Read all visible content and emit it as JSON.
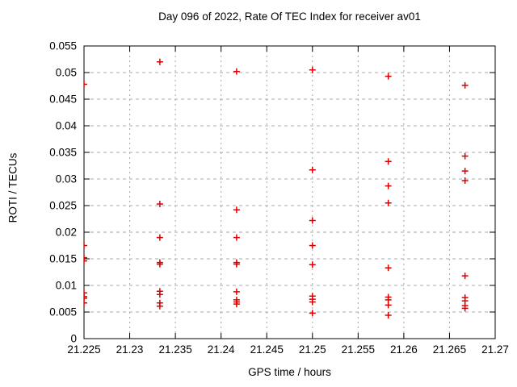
{
  "page": {
    "background": "#ffffff"
  },
  "chart_data": {
    "type": "scatter",
    "title": "Day 096 of 2022, Rate Of TEC Index for receiver av01",
    "xlabel": "GPS time / hours",
    "ylabel": "ROTI / TECUs",
    "xlim": [
      21.225,
      21.27
    ],
    "ylim": [
      0,
      0.055
    ],
    "grid": true,
    "legend": "none",
    "marker": {
      "shape": "plus",
      "color": "#dd0000",
      "size": 8
    },
    "axis_color": "#000000",
    "grid_color": "#a8a8a8",
    "x_ticks": [
      {
        "value": 21.225,
        "label": "21.225"
      },
      {
        "value": 21.23,
        "label": "21.23"
      },
      {
        "value": 21.235,
        "label": "21.235"
      },
      {
        "value": 21.24,
        "label": "21.24"
      },
      {
        "value": 21.245,
        "label": "21.245"
      },
      {
        "value": 21.25,
        "label": "21.25"
      },
      {
        "value": 21.255,
        "label": "21.255"
      },
      {
        "value": 21.26,
        "label": "21.26"
      },
      {
        "value": 21.265,
        "label": "21.265"
      },
      {
        "value": 21.27,
        "label": "21.27"
      }
    ],
    "y_ticks": [
      {
        "value": 0,
        "label": "0"
      },
      {
        "value": 0.005,
        "label": "0.005"
      },
      {
        "value": 0.01,
        "label": "0.01"
      },
      {
        "value": 0.015,
        "label": "0.015"
      },
      {
        "value": 0.02,
        "label": "0.02"
      },
      {
        "value": 0.025,
        "label": "0.025"
      },
      {
        "value": 0.03,
        "label": "0.03"
      },
      {
        "value": 0.035,
        "label": "0.035"
      },
      {
        "value": 0.04,
        "label": "0.04"
      },
      {
        "value": 0.045,
        "label": "0.045"
      },
      {
        "value": 0.05,
        "label": "0.05"
      },
      {
        "value": 0.055,
        "label": "0.055"
      }
    ],
    "series": [
      {
        "name": "ROTI",
        "points": [
          [
            21.225,
            0.0478
          ],
          [
            21.225,
            0.0175
          ],
          [
            21.225,
            0.0152
          ],
          [
            21.225,
            0.0146
          ],
          [
            21.225,
            0.0086
          ],
          [
            21.225,
            0.0079
          ],
          [
            21.225,
            0.0076
          ],
          [
            21.225,
            0.0067
          ],
          [
            21.2333,
            0.052
          ],
          [
            21.2333,
            0.0253
          ],
          [
            21.2333,
            0.019
          ],
          [
            21.2333,
            0.0143
          ],
          [
            21.2333,
            0.014
          ],
          [
            21.2333,
            0.0089
          ],
          [
            21.2333,
            0.0083
          ],
          [
            21.2333,
            0.0067
          ],
          [
            21.2333,
            0.0061
          ],
          [
            21.2417,
            0.0502
          ],
          [
            21.2417,
            0.0242
          ],
          [
            21.2417,
            0.019
          ],
          [
            21.2417,
            0.0143
          ],
          [
            21.2417,
            0.014
          ],
          [
            21.2417,
            0.0088
          ],
          [
            21.2417,
            0.0073
          ],
          [
            21.2417,
            0.0069
          ],
          [
            21.2417,
            0.0065
          ],
          [
            21.25,
            0.0505
          ],
          [
            21.25,
            0.0317
          ],
          [
            21.25,
            0.0222
          ],
          [
            21.25,
            0.0175
          ],
          [
            21.25,
            0.0139
          ],
          [
            21.25,
            0.008
          ],
          [
            21.25,
            0.0074
          ],
          [
            21.25,
            0.0069
          ],
          [
            21.25,
            0.0048
          ],
          [
            21.2583,
            0.0493
          ],
          [
            21.2583,
            0.0333
          ],
          [
            21.2583,
            0.0287
          ],
          [
            21.2583,
            0.0255
          ],
          [
            21.2583,
            0.0133
          ],
          [
            21.2583,
            0.0078
          ],
          [
            21.2583,
            0.0073
          ],
          [
            21.2583,
            0.0063
          ],
          [
            21.2583,
            0.0044
          ],
          [
            21.2667,
            0.0476
          ],
          [
            21.2667,
            0.0343
          ],
          [
            21.2667,
            0.0315
          ],
          [
            21.2667,
            0.0297
          ],
          [
            21.2667,
            0.0118
          ],
          [
            21.2667,
            0.0077
          ],
          [
            21.2667,
            0.0071
          ],
          [
            21.2667,
            0.0062
          ],
          [
            21.2667,
            0.0057
          ]
        ]
      }
    ]
  }
}
